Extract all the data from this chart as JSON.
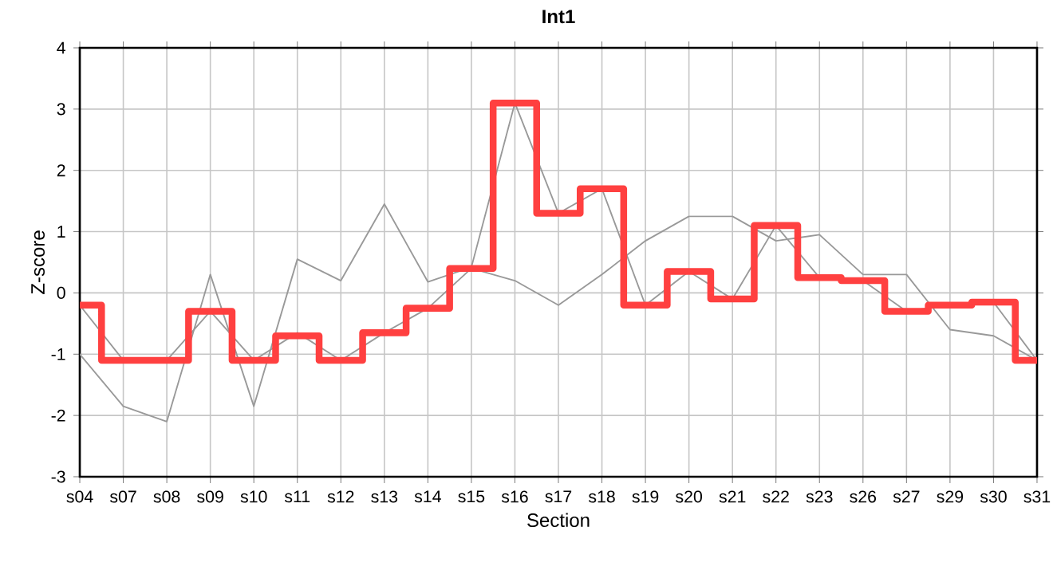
{
  "chart_data": {
    "type": "line",
    "title": "Int1",
    "xlabel": "Section",
    "ylabel": "Z-score",
    "categories": [
      "s04",
      "s07",
      "s08",
      "s09",
      "s10",
      "s11",
      "s12",
      "s13",
      "s14",
      "s15",
      "s16",
      "s17",
      "s18",
      "s19",
      "s20",
      "s21",
      "s22",
      "s23",
      "s26",
      "s27",
      "s29",
      "s30",
      "s31"
    ],
    "ylim": [
      -3,
      4
    ],
    "yticks": [
      -3,
      -2,
      -1,
      0,
      1,
      2,
      3,
      4
    ],
    "grid": true,
    "marker": "none",
    "series": [
      {
        "color": "#999999",
        "values": [
          -1.0,
          -1.85,
          -2.1,
          0.3,
          -1.85,
          0.55,
          0.2,
          1.45,
          0.18,
          0.42,
          3.1,
          1.3,
          1.7,
          -0.2,
          0.35,
          -0.1,
          1.1,
          0.25,
          0.2,
          -0.3,
          -0.2,
          -0.15,
          -1.1
        ]
      },
      {
        "color": "#999999",
        "values": [
          -0.2,
          -1.1,
          -1.1,
          -0.3,
          -1.1,
          -0.65,
          -1.1,
          -0.65,
          -0.25,
          0.4,
          0.2,
          -0.2,
          0.3,
          0.85,
          1.25,
          1.25,
          0.85,
          0.95,
          0.3,
          0.3,
          -0.6,
          -0.7,
          -1.1
        ]
      },
      {
        "type": "step",
        "color": "#ff4040",
        "values": [
          -0.2,
          -1.1,
          -1.1,
          -0.3,
          -1.1,
          -0.7,
          -1.1,
          -0.65,
          -0.25,
          0.4,
          3.1,
          1.3,
          1.7,
          -0.2,
          0.35,
          -0.1,
          1.1,
          0.25,
          0.2,
          -0.3,
          -0.2,
          -0.15,
          -1.1
        ]
      }
    ]
  }
}
